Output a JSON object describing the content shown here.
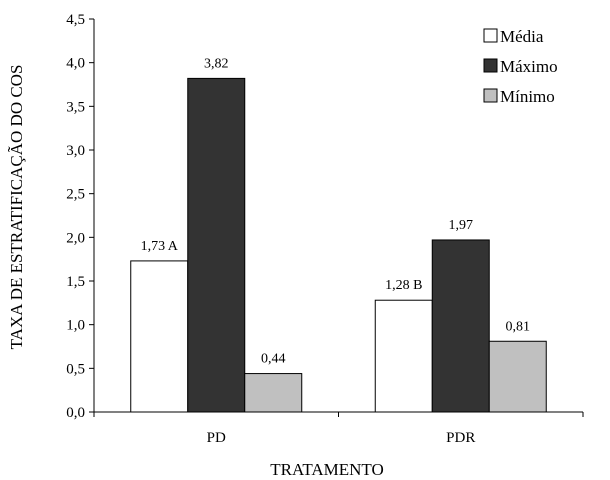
{
  "chart_data": {
    "type": "bar",
    "title": "",
    "xlabel": "TRATAMENTO",
    "ylabel": "TAXA DE ESTRATIFICAÇÃO DO COS",
    "ylim": [
      0,
      4.5
    ],
    "yticks": [
      "0,0",
      "0,5",
      "1,0",
      "1,5",
      "2,0",
      "2,5",
      "3,0",
      "3,5",
      "4,0",
      "4,5"
    ],
    "categories": [
      "PD",
      "PDR"
    ],
    "series": [
      {
        "name": "Média",
        "color": "#ffffff",
        "values": [
          1.73,
          1.28
        ],
        "labels": [
          "1,73 A",
          "1,28 B"
        ]
      },
      {
        "name": "Máximo",
        "color": "#333333",
        "values": [
          3.82,
          1.97
        ],
        "labels": [
          "3,82",
          "1,97"
        ]
      },
      {
        "name": "Mínimo",
        "color": "#c0c0c0",
        "values": [
          0.44,
          0.81
        ],
        "labels": [
          "0,44",
          "0,81"
        ]
      }
    ],
    "legend_position": "top-right",
    "grid": false
  }
}
